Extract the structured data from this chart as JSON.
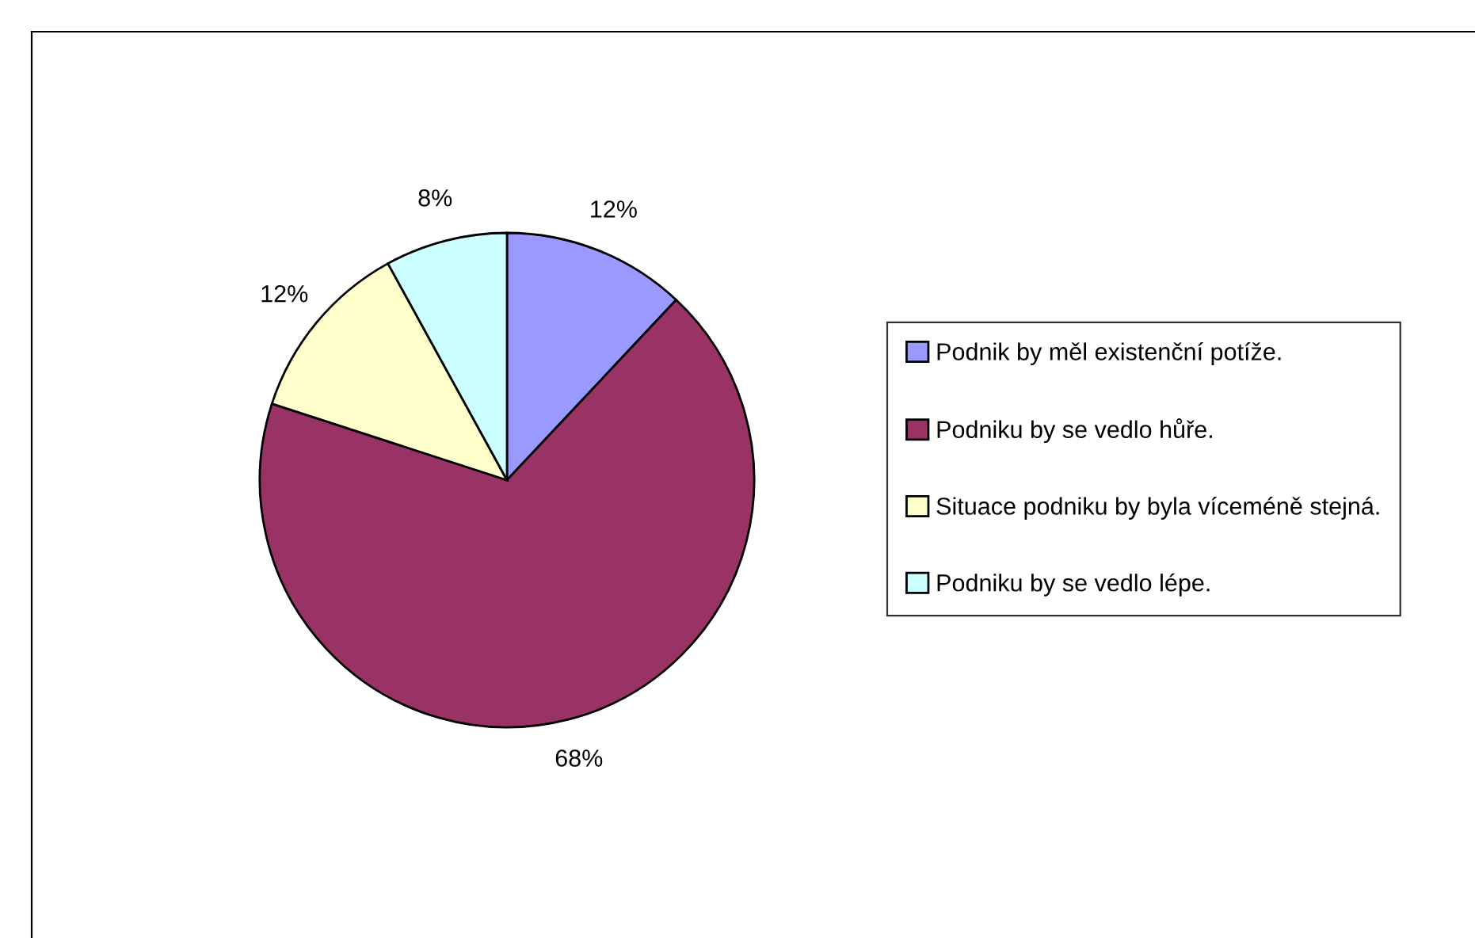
{
  "chart_data": {
    "type": "pie",
    "categories": [
      "Podnik by měl existenční potíže.",
      "Podniku by se vedlo hůře.",
      "Situace podniku by byla víceméně stejná.",
      "Podniku by se vedlo lépe."
    ],
    "values": [
      12,
      68,
      12,
      8
    ],
    "colors": [
      "#9999ff",
      "#993366",
      "#ffffcc",
      "#ccffff"
    ],
    "value_labels": [
      "12%",
      "68%",
      "12%",
      "8%"
    ],
    "legend": "right"
  }
}
